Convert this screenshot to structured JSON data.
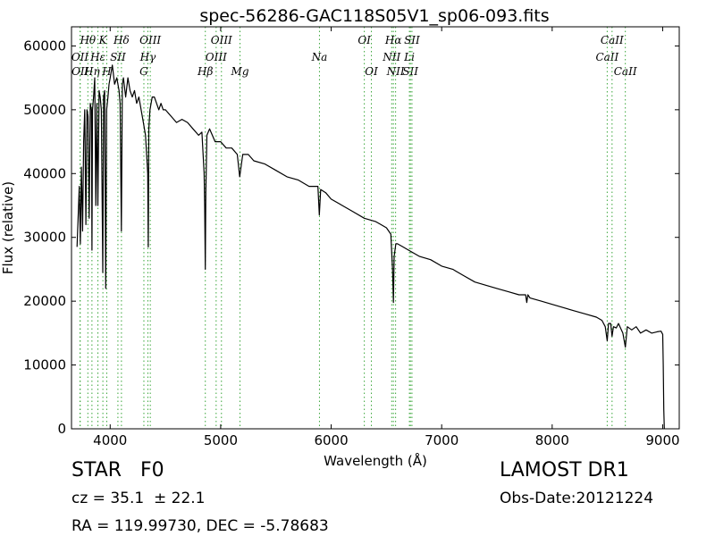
{
  "chart_data": {
    "type": "line",
    "title": "spec-56286-GAC118S05V1_sp06-093.fits",
    "xlabel": "Wavelength (Å)",
    "ylabel": "Flux (relative)",
    "xlim": [
      3650,
      9150
    ],
    "ylim": [
      0,
      63000
    ],
    "xticks": [
      4000,
      5000,
      6000,
      7000,
      8000,
      9000
    ],
    "yticks": [
      0,
      10000,
      20000,
      30000,
      40000,
      50000,
      60000
    ],
    "grid": false,
    "line_color": "#000000",
    "marker_color": "#3aa63a",
    "x": [
      3700,
      3720,
      3730,
      3740,
      3750,
      3760,
      3770,
      3780,
      3790,
      3800,
      3810,
      3820,
      3830,
      3835,
      3840,
      3850,
      3860,
      3870,
      3880,
      3889,
      3900,
      3910,
      3920,
      3930,
      3933,
      3940,
      3950,
      3960,
      3968,
      3980,
      3990,
      4000,
      4020,
      4040,
      4060,
      4080,
      4090,
      4101,
      4110,
      4120,
      4140,
      4160,
      4180,
      4200,
      4220,
      4240,
      4260,
      4280,
      4300,
      4320,
      4340,
      4345,
      4350,
      4360,
      4380,
      4400,
      4420,
      4440,
      4460,
      4480,
      4500,
      4550,
      4600,
      4650,
      4700,
      4750,
      4800,
      4830,
      4850,
      4855,
      4861,
      4866,
      4875,
      4900,
      4950,
      5000,
      5050,
      5100,
      5150,
      5172,
      5200,
      5250,
      5300,
      5400,
      5500,
      5600,
      5700,
      5800,
      5880,
      5893,
      5905,
      5950,
      6000,
      6100,
      6200,
      6300,
      6400,
      6450,
      6500,
      6540,
      6555,
      6563,
      6570,
      6585,
      6600,
      6650,
      6700,
      6800,
      6900,
      7000,
      7100,
      7200,
      7300,
      7400,
      7500,
      7600,
      7700,
      7760,
      7770,
      7780,
      7800,
      7900,
      8000,
      8100,
      8200,
      8300,
      8400,
      8450,
      8480,
      8498,
      8510,
      8530,
      8542,
      8555,
      8580,
      8600,
      8640,
      8662,
      8680,
      8720,
      8760,
      8800,
      8850,
      8900,
      8950,
      8985,
      9000,
      9005,
      9010,
      9015
    ],
    "y": [
      28500,
      38000,
      29000,
      41000,
      31000,
      45000,
      50000,
      32000,
      50000,
      49000,
      33000,
      51000,
      50000,
      28000,
      50000,
      52000,
      55000,
      35000,
      51000,
      35000,
      53000,
      52000,
      50000,
      31000,
      24500,
      52000,
      53000,
      22000,
      50000,
      52000,
      54000,
      55000,
      57000,
      54000,
      55000,
      53000,
      51000,
      31000,
      54000,
      55000,
      52000,
      55000,
      53000,
      52000,
      53000,
      51000,
      52000,
      50000,
      48000,
      46000,
      40000,
      28500,
      47000,
      50000,
      52000,
      52000,
      51000,
      50000,
      51000,
      50000,
      50000,
      49000,
      48000,
      48500,
      48000,
      47000,
      46000,
      46500,
      40000,
      35000,
      25000,
      37000,
      46000,
      47000,
      45000,
      45000,
      44000,
      44000,
      43000,
      39500,
      43000,
      43000,
      42000,
      41500,
      40500,
      39500,
      39000,
      38000,
      38000,
      33500,
      37500,
      37000,
      36000,
      35000,
      34000,
      33000,
      32500,
      32000,
      31500,
      30500,
      25000,
      19800,
      27000,
      29000,
      29000,
      28500,
      28000,
      27000,
      26500,
      25500,
      25000,
      24000,
      23000,
      22500,
      22000,
      21500,
      21000,
      21000,
      19800,
      21000,
      20500,
      20000,
      19500,
      19000,
      18500,
      18000,
      17500,
      17000,
      16000,
      13800,
      16500,
      16500,
      14500,
      16000,
      15800,
      16500,
      15000,
      12800,
      16000,
      15500,
      16000,
      15000,
      15500,
      15000,
      15200,
      15300,
      14800,
      10000,
      3000,
      0
    ],
    "lines": [
      {
        "label": "Hθ",
        "x": 3798,
        "row": 0
      },
      {
        "label": "OII",
        "x": 3727,
        "row": 1
      },
      {
        "label": "OII",
        "x": 3729,
        "row": 2
      },
      {
        "label": "Hη",
        "x": 3835,
        "row": 2
      },
      {
        "label": "Hε",
        "x": 3889,
        "row": 1
      },
      {
        "label": "K",
        "x": 3934,
        "row": 0
      },
      {
        "label": "H",
        "x": 3969,
        "row": 2
      },
      {
        "label": "SII",
        "x": 4070,
        "row": 1
      },
      {
        "label": "Hδ",
        "x": 4102,
        "row": 0
      },
      {
        "label": "G",
        "x": 4305,
        "row": 2
      },
      {
        "label": "Hγ",
        "x": 4341,
        "row": 1
      },
      {
        "label": "OIII",
        "x": 4363,
        "row": 0
      },
      {
        "label": "Hβ",
        "x": 4861,
        "row": 2
      },
      {
        "label": "OIII",
        "x": 4959,
        "row": 1
      },
      {
        "label": "OIII",
        "x": 5007,
        "row": 0
      },
      {
        "label": "Mg",
        "x": 5175,
        "row": 2
      },
      {
        "label": "Na",
        "x": 5894,
        "row": 1
      },
      {
        "label": "OI",
        "x": 6300,
        "row": 0
      },
      {
        "label": "OI",
        "x": 6364,
        "row": 2
      },
      {
        "label": "NII",
        "x": 6548,
        "row": 1
      },
      {
        "label": "Hα",
        "x": 6563,
        "row": 0
      },
      {
        "label": "NII",
        "x": 6583,
        "row": 2
      },
      {
        "label": "Li",
        "x": 6708,
        "row": 1
      },
      {
        "label": "SII",
        "x": 6717,
        "row": 2
      },
      {
        "label": "SII",
        "x": 6731,
        "row": 0
      },
      {
        "label": "CaII",
        "x": 8498,
        "row": 1
      },
      {
        "label": "CaII",
        "x": 8542,
        "row": 0
      },
      {
        "label": "CaII",
        "x": 8662,
        "row": 2
      }
    ]
  },
  "info": {
    "class_label": "STAR",
    "subclass_label": "F0",
    "cz_text": "cz = 35.1  ± 22.1",
    "radec_text": "RA = 119.99730, DEC = -5.78683",
    "survey_label": "LAMOST DR1",
    "obs_date_text": "Obs-Date:20121224"
  }
}
